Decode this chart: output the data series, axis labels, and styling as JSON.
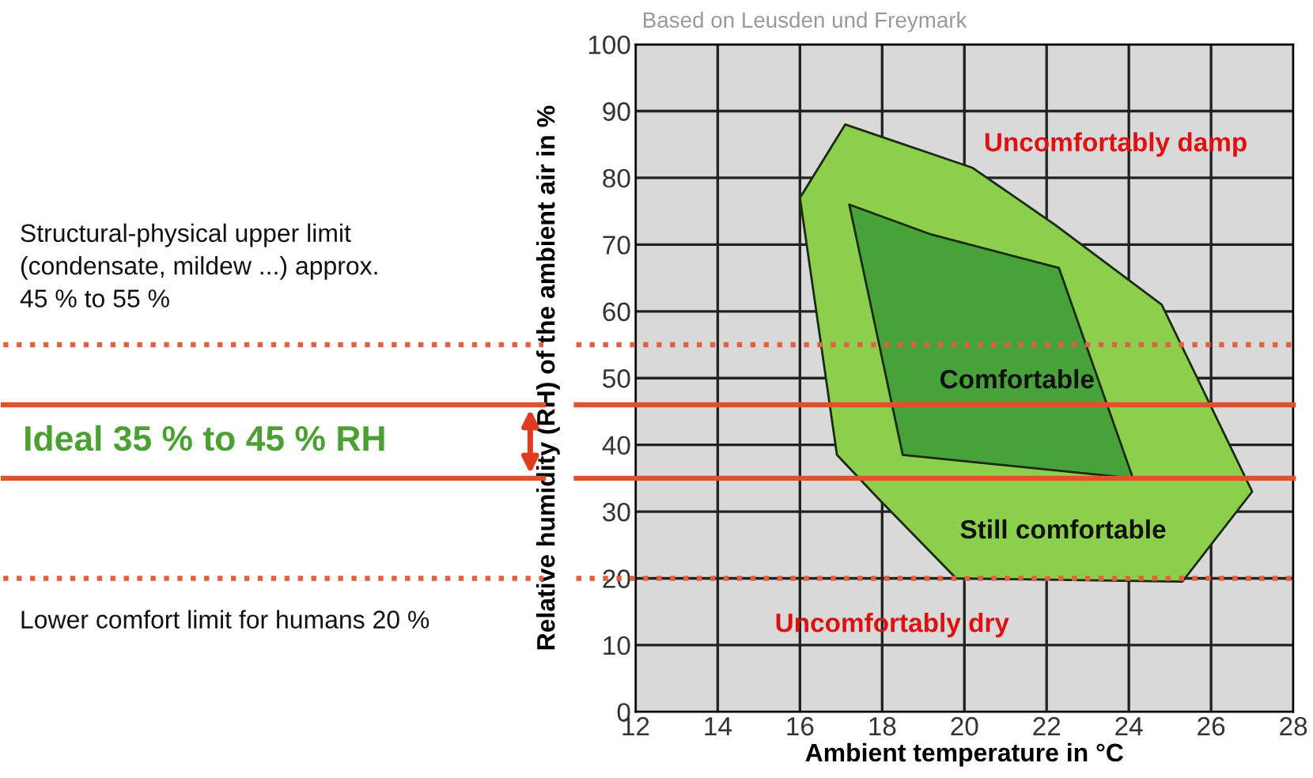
{
  "chart_data": {
    "type": "area",
    "xlabel": "Ambient temperature in °C",
    "ylabel": "Relative humidity (RH) of the ambient air in %",
    "xlim": [
      12,
      28
    ],
    "xticks": [
      12,
      14,
      16,
      18,
      20,
      22,
      24,
      26,
      28
    ],
    "ylim": [
      0,
      100
    ],
    "yticks": [
      0,
      10,
      20,
      30,
      40,
      50,
      60,
      70,
      80,
      90,
      100
    ],
    "grid": true,
    "series": [
      {
        "color": "#8ccf4d",
        "x": [
          16,
          17.1,
          20.2,
          22.2,
          24.8,
          27,
          25.3,
          19.8,
          17.9,
          16.9,
          16
        ],
        "values": [
          77,
          88,
          81.5,
          73,
          61,
          33,
          19.5,
          20,
          32,
          38.5,
          77
        ]
      },
      {
        "color": "#47a23a",
        "x": [
          17.2,
          19.2,
          22.3,
          24.1,
          18.5,
          17.2
        ],
        "values": [
          76,
          71.5,
          66.5,
          35,
          38.5,
          76
        ]
      }
    ],
    "ref_lines": [
      {
        "axis": "y",
        "value": 55,
        "color": "#e06040",
        "line_style": "dotted"
      },
      {
        "axis": "y",
        "value": 46,
        "color": "#e0502a",
        "line_style": "solid"
      },
      {
        "axis": "y",
        "value": 35,
        "color": "#e0502a",
        "line_style": "solid"
      },
      {
        "axis": "y",
        "value": 20,
        "color": "#e06040",
        "line_style": "dotted"
      }
    ],
    "annotations": [
      "Based on Leusden und Freymark",
      "Ideal 35 % to 45 % RH",
      "Uncomfortably damp",
      "Comfortable",
      "Still comfortable",
      "Uncomfortably dry",
      "Structural-physical upper limit\n(condensate, mildew ...) approx.\n45 % to 55 %",
      "Lower comfort limit for humans 20 %"
    ]
  }
}
